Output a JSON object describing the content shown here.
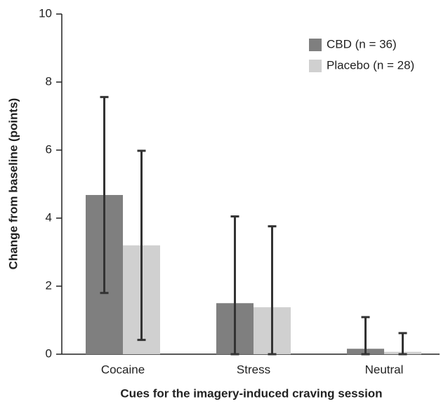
{
  "chart_data": {
    "type": "bar",
    "x_label": "Cues for the imagery-induced craving session",
    "y_label": "Change from baseline (points)",
    "categories": [
      "Cocaine",
      "Stress",
      "Neutral"
    ],
    "series": [
      {
        "name": "CBD (n = 36)",
        "color": "#7f7f7f",
        "values": [
          4.68,
          1.5,
          0.16
        ],
        "errors": [
          2.88,
          2.55,
          0.93
        ]
      },
      {
        "name": "Placebo (n = 28)",
        "color": "#d0d0d0",
        "values": [
          3.2,
          1.38,
          0.07
        ],
        "errors": [
          2.78,
          2.38,
          0.55
        ]
      }
    ],
    "ylim": [
      0,
      10
    ],
    "yticks": [
      0,
      2,
      4,
      6,
      8,
      10
    ],
    "legend": "upper right"
  }
}
